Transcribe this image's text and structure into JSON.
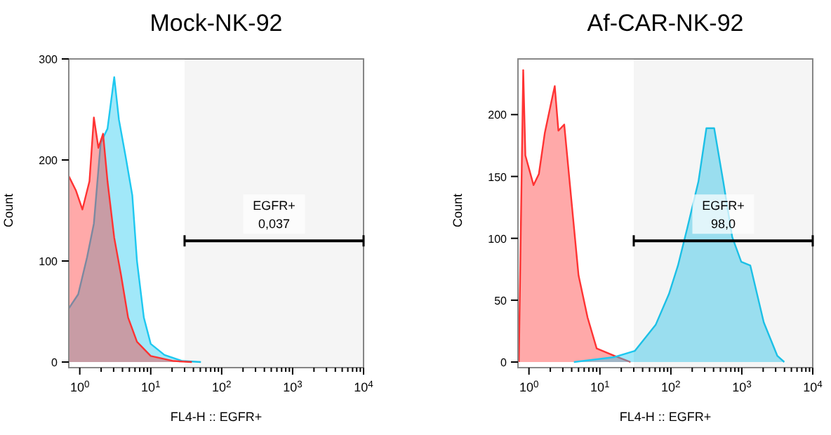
{
  "chart_data": [
    {
      "type": "area",
      "title": "Mock-NK-92",
      "xlabel": "FL4-H :: EGFR+",
      "ylabel": "Count",
      "log": "x",
      "xlim": [
        0.7,
        10000
      ],
      "ylim": [
        0,
        300
      ],
      "xticks": [
        {
          "value": 1,
          "label": "10$^{0}$"
        },
        {
          "value": 2,
          "label": null
        },
        {
          "value": 3,
          "label": null
        },
        {
          "value": 4,
          "label": null
        },
        {
          "value": 5,
          "label": null
        },
        {
          "value": 6,
          "label": null
        },
        {
          "value": 7,
          "label": null
        },
        {
          "value": 8,
          "label": null
        },
        {
          "value": 9,
          "label": null
        },
        {
          "value": 10,
          "label": "10$^{1}$"
        },
        {
          "value": 20,
          "label": null
        },
        {
          "value": 30,
          "label": null
        },
        {
          "value": 40,
          "label": null
        },
        {
          "value": 50,
          "label": null
        },
        {
          "value": 60,
          "label": null
        },
        {
          "value": 70,
          "label": null
        },
        {
          "value": 80,
          "label": null
        },
        {
          "value": 90,
          "label": null
        },
        {
          "value": 100,
          "label": "10$^{2}$"
        },
        {
          "value": 200,
          "label": null
        },
        {
          "value": 300,
          "label": null
        },
        {
          "value": 400,
          "label": null
        },
        {
          "value": 500,
          "label": null
        },
        {
          "value": 600,
          "label": null
        },
        {
          "value": 700,
          "label": null
        },
        {
          "value": 800,
          "label": null
        },
        {
          "value": 900,
          "label": null
        },
        {
          "value": 1000,
          "label": "10$^{3}$"
        },
        {
          "value": 2000,
          "label": null
        },
        {
          "value": 3000,
          "label": null
        },
        {
          "value": 4000,
          "label": null
        },
        {
          "value": 5000,
          "label": null
        },
        {
          "value": 6000,
          "label": null
        },
        {
          "value": 7000,
          "label": null
        },
        {
          "value": 8000,
          "label": null
        },
        {
          "value": 9000,
          "label": null
        },
        {
          "value": 10000,
          "label": "10$^{4}$"
        }
      ],
      "yticks": [
        0,
        100,
        200,
        300
      ],
      "series": [
        {
          "color": "#1ec8f0",
          "x": [
            0.7,
            0.95,
            1.27,
            1.58,
            1.97,
            2.46,
            3.06,
            3.56,
            4.44,
            5.5,
            6.4,
            8,
            10,
            15.6,
            28,
            51
          ],
          "values": [
            53,
            67,
            104,
            137,
            217,
            231,
            282,
            240,
            203,
            165,
            100,
            44,
            18,
            7,
            1,
            0
          ]
        },
        {
          "color": "#ff3333",
          "x": [
            0.7,
            0.88,
            1.09,
            1.37,
            1.58,
            1.83,
            2.13,
            2.46,
            3.06,
            3.82,
            4.8,
            6.4,
            10,
            21,
            38
          ],
          "values": [
            184,
            170,
            151,
            179,
            242,
            212,
            226,
            179,
            123,
            86,
            44,
            20,
            6,
            1,
            0
          ]
        }
      ],
      "bands": [
        {
          "axis": "x",
          "from": 30,
          "to": 10000,
          "label": "EGFR+",
          "color": "#000000"
        }
      ],
      "annotations": [
        "0,037"
      ]
    },
    {
      "type": "area",
      "title": "Af-CAR-NK-92",
      "xlabel": "FL4-H :: EGFR+",
      "ylabel": "Count",
      "log": "x",
      "xlim": [
        0.7,
        10000
      ],
      "ylim": [
        0,
        245
      ],
      "xticks": [
        {
          "value": 1,
          "label": "10$^{0}$"
        },
        {
          "value": 2,
          "label": null
        },
        {
          "value": 3,
          "label": null
        },
        {
          "value": 4,
          "label": null
        },
        {
          "value": 5,
          "label": null
        },
        {
          "value": 6,
          "label": null
        },
        {
          "value": 7,
          "label": null
        },
        {
          "value": 8,
          "label": null
        },
        {
          "value": 9,
          "label": null
        },
        {
          "value": 10,
          "label": "10$^{1}$"
        },
        {
          "value": 20,
          "label": null
        },
        {
          "value": 30,
          "label": null
        },
        {
          "value": 40,
          "label": null
        },
        {
          "value": 50,
          "label": null
        },
        {
          "value": 60,
          "label": null
        },
        {
          "value": 70,
          "label": null
        },
        {
          "value": 80,
          "label": null
        },
        {
          "value": 90,
          "label": null
        },
        {
          "value": 100,
          "label": "10$^{2}$"
        },
        {
          "value": 200,
          "label": null
        },
        {
          "value": 300,
          "label": null
        },
        {
          "value": 400,
          "label": null
        },
        {
          "value": 500,
          "label": null
        },
        {
          "value": 600,
          "label": null
        },
        {
          "value": 700,
          "label": null
        },
        {
          "value": 800,
          "label": null
        },
        {
          "value": 900,
          "label": null
        },
        {
          "value": 1000,
          "label": "10$^{3}$"
        },
        {
          "value": 2000,
          "label": null
        },
        {
          "value": 3000,
          "label": null
        },
        {
          "value": 4000,
          "label": null
        },
        {
          "value": 5000,
          "label": null
        },
        {
          "value": 6000,
          "label": null
        },
        {
          "value": 7000,
          "label": null
        },
        {
          "value": 8000,
          "label": null
        },
        {
          "value": 9000,
          "label": null
        },
        {
          "value": 10000,
          "label": "10$^{4}$"
        }
      ],
      "yticks": [
        0,
        50,
        100,
        150,
        200
      ],
      "series": [
        {
          "color": "#ff3333",
          "x": [
            0.72,
            0.83,
            0.89,
            1.16,
            1.38,
            1.67,
            2.08,
            2.31,
            2.6,
            3.14,
            3.74,
            5,
            6.7,
            9,
            16,
            27
          ],
          "values": [
            0,
            236,
            167,
            143,
            152,
            185,
            211,
            223,
            187,
            192,
            146,
            70,
            36,
            11,
            5,
            0
          ]
        },
        {
          "color": "#1ec8f0",
          "x": [
            4.3,
            16,
            31,
            61,
            94,
            126,
            170,
            245,
            317,
            408,
            547,
            733,
            982,
            1318,
            2040,
            3170,
            3970
          ],
          "values": [
            0,
            4,
            9,
            30,
            55,
            78,
            108,
            146,
            189,
            189,
            146,
            101,
            81,
            78,
            32,
            5,
            0
          ]
        }
      ],
      "bands": [
        {
          "axis": "x",
          "from": 30,
          "to": 10000,
          "label": "EGFR+",
          "color": "#000000"
        }
      ],
      "annotations": [
        "98,0"
      ]
    }
  ]
}
